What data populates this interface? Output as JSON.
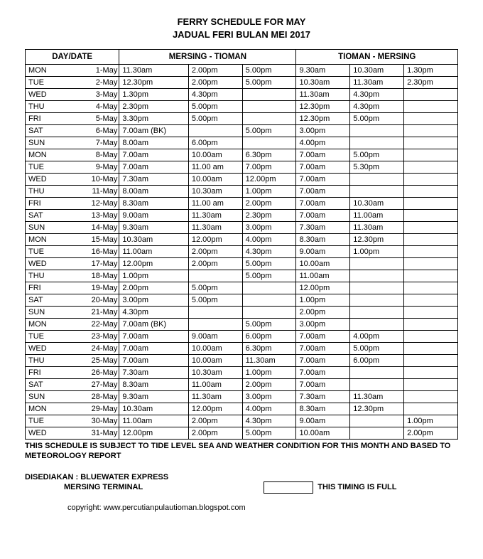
{
  "title1": "FERRY SCHEDULE FOR MAY",
  "title2": "JADUAL FERI BULAN MEI 2017",
  "headers": {
    "daydate": "DAY/DATE",
    "route1": "MERSING - TIOMAN",
    "route2": "TIOMAN - MERSING"
  },
  "rows": [
    {
      "day": "MON",
      "date": "1-May",
      "m1": "11.30am",
      "m2": "2.00pm",
      "m3": "5.00pm",
      "t1": "9.30am",
      "t2": "10.30am",
      "t3": "1.30pm"
    },
    {
      "day": "TUE",
      "date": "2-May",
      "m1": "12.30pm",
      "m2": "2.00pm",
      "m3": "5.00pm",
      "t1": "10.30am",
      "t2": "11.30am",
      "t3": "2.30pm"
    },
    {
      "day": "WED",
      "date": "3-May",
      "m1": "1.30pm",
      "m2": "4.30pm",
      "m3": "",
      "t1": "11.30am",
      "t2": "4.30pm",
      "t3": ""
    },
    {
      "day": "THU",
      "date": "4-May",
      "m1": "2.30pm",
      "m2": "5.00pm",
      "m3": "",
      "t1": "12.30pm",
      "t2": "4.30pm",
      "t3": ""
    },
    {
      "day": "FRI",
      "date": "5-May",
      "m1": "3.30pm",
      "m2": "5.00pm",
      "m3": "",
      "t1": "12.30pm",
      "t2": "5.00pm",
      "t3": ""
    },
    {
      "day": "SAT",
      "date": "6-May",
      "m1": "7.00am (BK)",
      "m2": "",
      "m3": "5.00pm",
      "t1": "3.00pm",
      "t2": "",
      "t3": ""
    },
    {
      "day": "SUN",
      "date": "7-May",
      "m1": "8.00am",
      "m2": "6.00pm",
      "m3": "",
      "t1": "4.00pm",
      "t2": "",
      "t3": ""
    },
    {
      "day": "MON",
      "date": "8-May",
      "m1": "7.00am",
      "m2": "10.00am",
      "m3": "6.30pm",
      "t1": "7.00am",
      "t2": "5.00pm",
      "t3": ""
    },
    {
      "day": "TUE",
      "date": "9-May",
      "m1": "7.00am",
      "m2": "11.00 am",
      "m3": "7.00pm",
      "t1": "7.00am",
      "t2": "5.30pm",
      "t3": ""
    },
    {
      "day": "WED",
      "date": "10-May",
      "m1": "7.30am",
      "m2": "10.00am",
      "m3": "12.00pm",
      "t1": "7.00am",
      "t2": "",
      "t3": ""
    },
    {
      "day": "THU",
      "date": "11-May",
      "m1": "8.00am",
      "m2": "10.30am",
      "m3": "1.00pm",
      "t1": "7.00am",
      "t2": "",
      "t3": ""
    },
    {
      "day": "FRI",
      "date": "12-May",
      "m1": "8.30am",
      "m2": "11.00 am",
      "m3": "2.00pm",
      "t1": "7.00am",
      "t2": "10.30am",
      "t3": ""
    },
    {
      "day": "SAT",
      "date": "13-May",
      "m1": "9.00am",
      "m2": "11.30am",
      "m3": "2.30pm",
      "t1": "7.00am",
      "t2": "11.00am",
      "t3": ""
    },
    {
      "day": "SUN",
      "date": "14-May",
      "m1": "9.30am",
      "m2": "11.30am",
      "m3": "3.00pm",
      "t1": "7.30am",
      "t2": "11.30am",
      "t3": ""
    },
    {
      "day": "MON",
      "date": "15-May",
      "m1": "10.30am",
      "m2": "12.00pm",
      "m3": "4.00pm",
      "t1": "8.30am",
      "t2": "12.30pm",
      "t3": ""
    },
    {
      "day": "TUE",
      "date": "16-May",
      "m1": "11.00am",
      "m2": "2.00pm",
      "m3": "4.30pm",
      "t1": "9.00am",
      "t2": "1.00pm",
      "t3": ""
    },
    {
      "day": "WED",
      "date": "17-May",
      "m1": "12.00pm",
      "m2": "2.00pm",
      "m3": "5.00pm",
      "t1": "10.00am",
      "t2": "",
      "t3": ""
    },
    {
      "day": "THU",
      "date": "18-May",
      "m1": "1.00pm",
      "m2": "",
      "m3": "5.00pm",
      "t1": "11.00am",
      "t2": "",
      "t3": ""
    },
    {
      "day": "FRI",
      "date": "19-May",
      "m1": "2.00pm",
      "m2": "5.00pm",
      "m3": "",
      "t1": "12.00pm",
      "t2": "",
      "t3": ""
    },
    {
      "day": "SAT",
      "date": "20-May",
      "m1": "3.00pm",
      "m2": "5.00pm",
      "m3": "",
      "t1": "1.00pm",
      "t2": "",
      "t3": ""
    },
    {
      "day": "SUN",
      "date": "21-May",
      "m1": "4.30pm",
      "m2": "",
      "m3": "",
      "t1": "2.00pm",
      "t2": "",
      "t3": ""
    },
    {
      "day": "MON",
      "date": "22-May",
      "m1": "7.00am (BK)",
      "m2": "",
      "m3": "5.00pm",
      "t1": "3.00pm",
      "t2": "",
      "t3": ""
    },
    {
      "day": "TUE",
      "date": "23-May",
      "m1": "7.00am",
      "m2": "9.00am",
      "m3": "6.00pm",
      "t1": "7.00am",
      "t2": "4.00pm",
      "t3": ""
    },
    {
      "day": "WED",
      "date": "24-May",
      "m1": "7.00am",
      "m2": "10.00am",
      "m3": "6.30pm",
      "t1": "7.00am",
      "t2": "5.00pm",
      "t3": ""
    },
    {
      "day": "THU",
      "date": "25-May",
      "m1": "7.00am",
      "m2": "10.00am",
      "m3": "11.30am",
      "t1": "7.00am",
      "t2": "6.00pm",
      "t3": ""
    },
    {
      "day": "FRI",
      "date": "26-May",
      "m1": "7.30am",
      "m2": "10.30am",
      "m3": "1.00pm",
      "t1": "7.00am",
      "t2": "",
      "t3": ""
    },
    {
      "day": "SAT",
      "date": "27-May",
      "m1": "8.30am",
      "m2": "11.00am",
      "m3": "2.00pm",
      "t1": "7.00am",
      "t2": "",
      "t3": ""
    },
    {
      "day": "SUN",
      "date": "28-May",
      "m1": "9.30am",
      "m2": "11.30am",
      "m3": "3.00pm",
      "t1": "7.30am",
      "t2": "11.30am",
      "t3": ""
    },
    {
      "day": "MON",
      "date": "29-May",
      "m1": "10.30am",
      "m2": "12.00pm",
      "m3": "4.00pm",
      "t1": "8.30am",
      "t2": "12.30pm",
      "t3": ""
    },
    {
      "day": "TUE",
      "date": "30-May",
      "m1": "11.00am",
      "m2": "2.00pm",
      "m3": "4.30pm",
      "t1": "9.00am",
      "t2": "",
      "t3": "1.00pm"
    },
    {
      "day": "WED",
      "date": "31-May",
      "m1": "12.00pm",
      "m2": "2.00pm",
      "m3": "5.00pm",
      "t1": "10.00am",
      "t2": "",
      "t3": "2.00pm"
    }
  ],
  "note": "THIS SCHEDULE IS SUBJECT TO TIDE LEVEL SEA AND WEATHER CONDITION FOR THIS MONTH AND BASED TO METEOROLOGY REPORT",
  "provided_label": "DISEDIAKAN : BLUEWATER EXPRESS",
  "terminal": "MERSING TERMINAL",
  "full_label": "THIS TIMING IS FULL",
  "copyright": "copyright: www.percutianpulautioman.blogspot.com"
}
